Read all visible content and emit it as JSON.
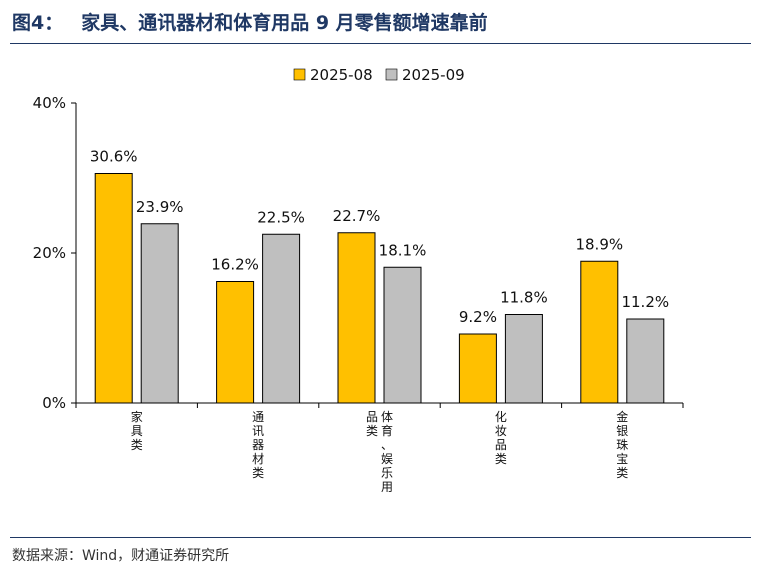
{
  "figure": {
    "number": "图4：",
    "title": "家具、通讯器材和体育用品 9 月零售额增速靠前",
    "source": "数据来源：Wind，财通证券研究所"
  },
  "colors": {
    "series1": "#FFC000",
    "series2": "#BFBFBF",
    "axis": "#000000",
    "rule": "#1F3864"
  },
  "chart_data": {
    "type": "bar",
    "title": "家具、通讯器材和体育用品 9 月零售额增速靠前",
    "categories": [
      "家具类",
      "通讯器材类",
      "体育、娱乐用品类",
      "化妆品类",
      "金银珠宝类"
    ],
    "series": [
      {
        "name": "2025-08",
        "values": [
          30.6,
          16.2,
          22.7,
          9.2,
          18.9
        ],
        "labels": [
          "30.6%",
          "16.2%",
          "22.7%",
          "9.2%",
          "18.9%"
        ]
      },
      {
        "name": "2025-09",
        "values": [
          23.9,
          22.5,
          18.1,
          11.8,
          11.2
        ],
        "labels": [
          "23.9%",
          "22.5%",
          "18.1%",
          "11.8%",
          "11.2%"
        ]
      }
    ],
    "ylim": [
      0,
      40
    ],
    "yticks": [
      0,
      20,
      40
    ],
    "ytick_labels": [
      "0%",
      "20%",
      "40%"
    ],
    "xlabel": "",
    "ylabel": "",
    "grid": false,
    "legend": "top-center"
  }
}
